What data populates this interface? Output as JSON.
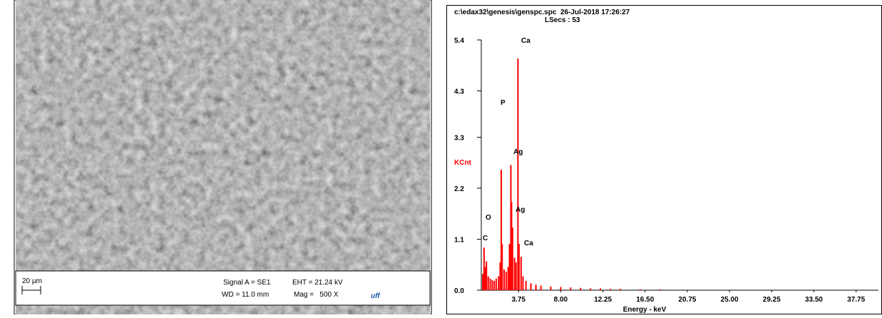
{
  "sem_panel": {
    "scale_bar": "20 µm",
    "signal": "Signal A = SE1",
    "eht": "EHT = 21.24 kV",
    "wd": "WD = 11.0 mm",
    "mag": "Mag =   500 X",
    "logo": "uff"
  },
  "chart_data": {
    "type": "spectrum",
    "header": "c:\\edax32\\genesis\\genspc.spc  26-Jul-2018 17:26:27",
    "subheader": "LSecs : 53",
    "y_label": "KCnt",
    "x_label": "Energy - keV",
    "color": "#ff0000",
    "annotations": [
      "Ca",
      "P",
      "Ag",
      "Ag",
      "O",
      "C",
      "Ca"
    ],
    "x": [
      0.15,
      0.28,
      0.4,
      0.52,
      0.7,
      0.9,
      1.1,
      1.3,
      1.5,
      1.74,
      1.9,
      2.01,
      2.1,
      2.3,
      2.5,
      2.7,
      2.84,
      2.98,
      3.05,
      3.15,
      3.35,
      3.5,
      3.69,
      3.8,
      4.01,
      4.2,
      4.5,
      5.0,
      5.5,
      6.0,
      7.0,
      8.0,
      9.0,
      10.0,
      11.0,
      12.0,
      13.0,
      14.0,
      16.0,
      18.0,
      20.0
    ],
    "values": [
      0.35,
      0.92,
      0.5,
      0.62,
      0.3,
      0.25,
      0.22,
      0.2,
      0.25,
      0.3,
      0.6,
      2.6,
      1.0,
      0.45,
      0.4,
      0.5,
      1.0,
      2.7,
      1.9,
      1.35,
      0.7,
      0.6,
      5.0,
      1.0,
      0.72,
      0.3,
      0.2,
      0.15,
      0.12,
      0.1,
      0.08,
      0.07,
      0.06,
      0.05,
      0.04,
      0.04,
      0.03,
      0.03,
      0.02,
      0.02,
      0.01
    ],
    "xlim": [
      0,
      40
    ],
    "xticks": [
      3.75,
      {
        "value": 8,
        "label": "8.00"
      },
      12.25,
      {
        "value": 16.5,
        "label": "16.50"
      },
      20.75,
      {
        "value": 25,
        "label": "25.00"
      },
      29.25,
      {
        "value": 33.5,
        "label": "33.50"
      },
      37.75
    ],
    "ylim": [
      0,
      5.4
    ],
    "yticks": [
      {
        "value": 0,
        "label": "0.0"
      },
      1.1,
      2.2,
      3.3,
      4.3,
      5.4
    ]
  }
}
